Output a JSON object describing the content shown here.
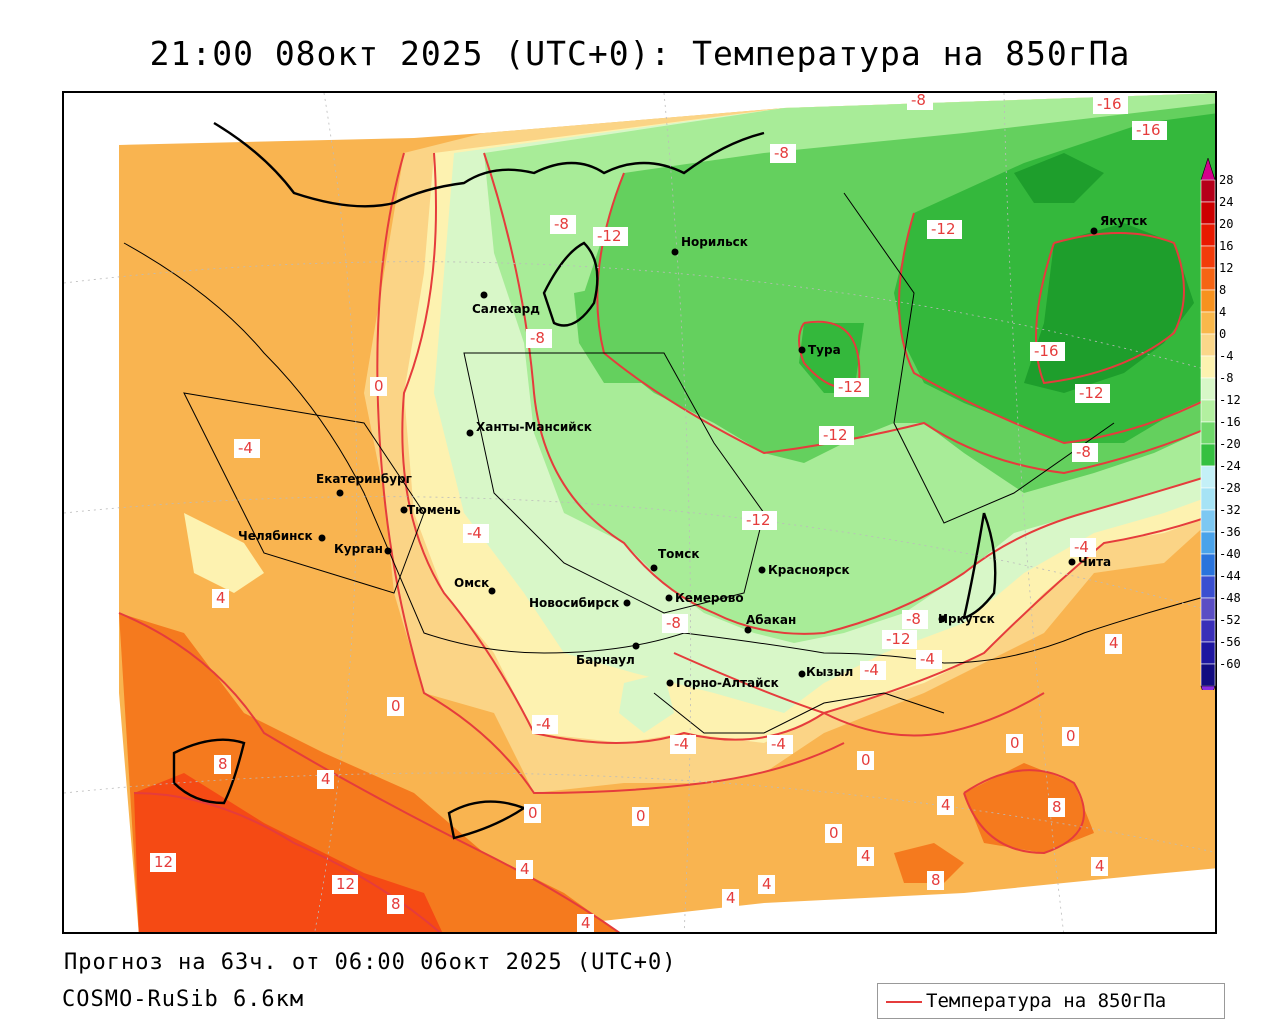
{
  "header": {
    "title": "21:00 08окт 2025 (UTC+0): Температура на 850гПа"
  },
  "footer": {
    "forecast": "Прогноз на 63ч. от 06:00 06окт 2025 (UTC+0)",
    "model": "COSMO-RuSib 6.6км"
  },
  "legend": {
    "label": "Температура на 850гПа",
    "line_color": "#e53c3c"
  },
  "colorbar": {
    "labels": [
      "28",
      "24",
      "20",
      "16",
      "12",
      "8",
      "4",
      "0",
      "-4",
      "-8",
      "-12",
      "-16",
      "-20",
      "-24",
      "-28",
      "-32",
      "-36",
      "-40",
      "-44",
      "-48",
      "-52",
      "-56",
      "-60"
    ],
    "colors": [
      "#b5001a",
      "#cc0000",
      "#e81a00",
      "#f23c0a",
      "#f56414",
      "#f7921e",
      "#f9b84b",
      "#fbd78a",
      "#fdf2b0",
      "#d8f7c8",
      "#b3f0a0",
      "#6fd86a",
      "#35c040",
      "#c4f0f7",
      "#a6e3f5",
      "#7dc8f2",
      "#4aa3ea",
      "#2a74dc",
      "#3a4fd0",
      "#5b4ec4",
      "#3a2fb8",
      "#1e16a0",
      "#120c80"
    ],
    "top_arrow_color": "#d4008c",
    "bottom_arrow_color": "#8a2be2"
  },
  "map": {
    "cities": [
      "Норильск",
      "Якутск",
      "Салехард",
      "Тура",
      "Ханты-Мансийск",
      "Екатеринбург",
      "Тюмень",
      "Челябинск",
      "Курган",
      "Омск",
      "Новосибирск",
      "Томск",
      "Красноярск",
      "Кемерово",
      "Барнаул",
      "Абакан",
      "Горно-Алтайск",
      "Кызыл",
      "Иркутск",
      "Чита"
    ],
    "isotherm_labels": [
      "-8",
      "-16",
      "-16",
      "-8",
      "-12",
      "-8",
      "-12",
      "-8",
      "-12",
      "-16",
      "-12",
      "-12",
      "-8",
      "-12",
      "0",
      "-4",
      "-4",
      "4",
      "-4",
      "-8",
      "-12",
      "-8",
      "-4",
      "4",
      "0",
      "-4",
      "-4",
      "-4",
      "0",
      "8",
      "4",
      "0",
      "0",
      "0",
      "4",
      "8",
      "0",
      "4",
      "12",
      "12",
      "8",
      "4",
      "4",
      "4",
      "4",
      "8",
      "4",
      "4",
      "0",
      "-4"
    ],
    "palette": {
      "warm12": "#f54a14",
      "warm8": "#f57a1e",
      "warm4": "#f9b450",
      "warm0": "#fbd486",
      "cool0": "#fdf2b0",
      "coolm4": "#d8f7c8",
      "coolm8": "#a8ec98",
      "coolm12": "#64d05e",
      "coolm16": "#34b83c",
      "coolm20": "#1e9e2c",
      "isoline": "#e53c3c"
    }
  }
}
